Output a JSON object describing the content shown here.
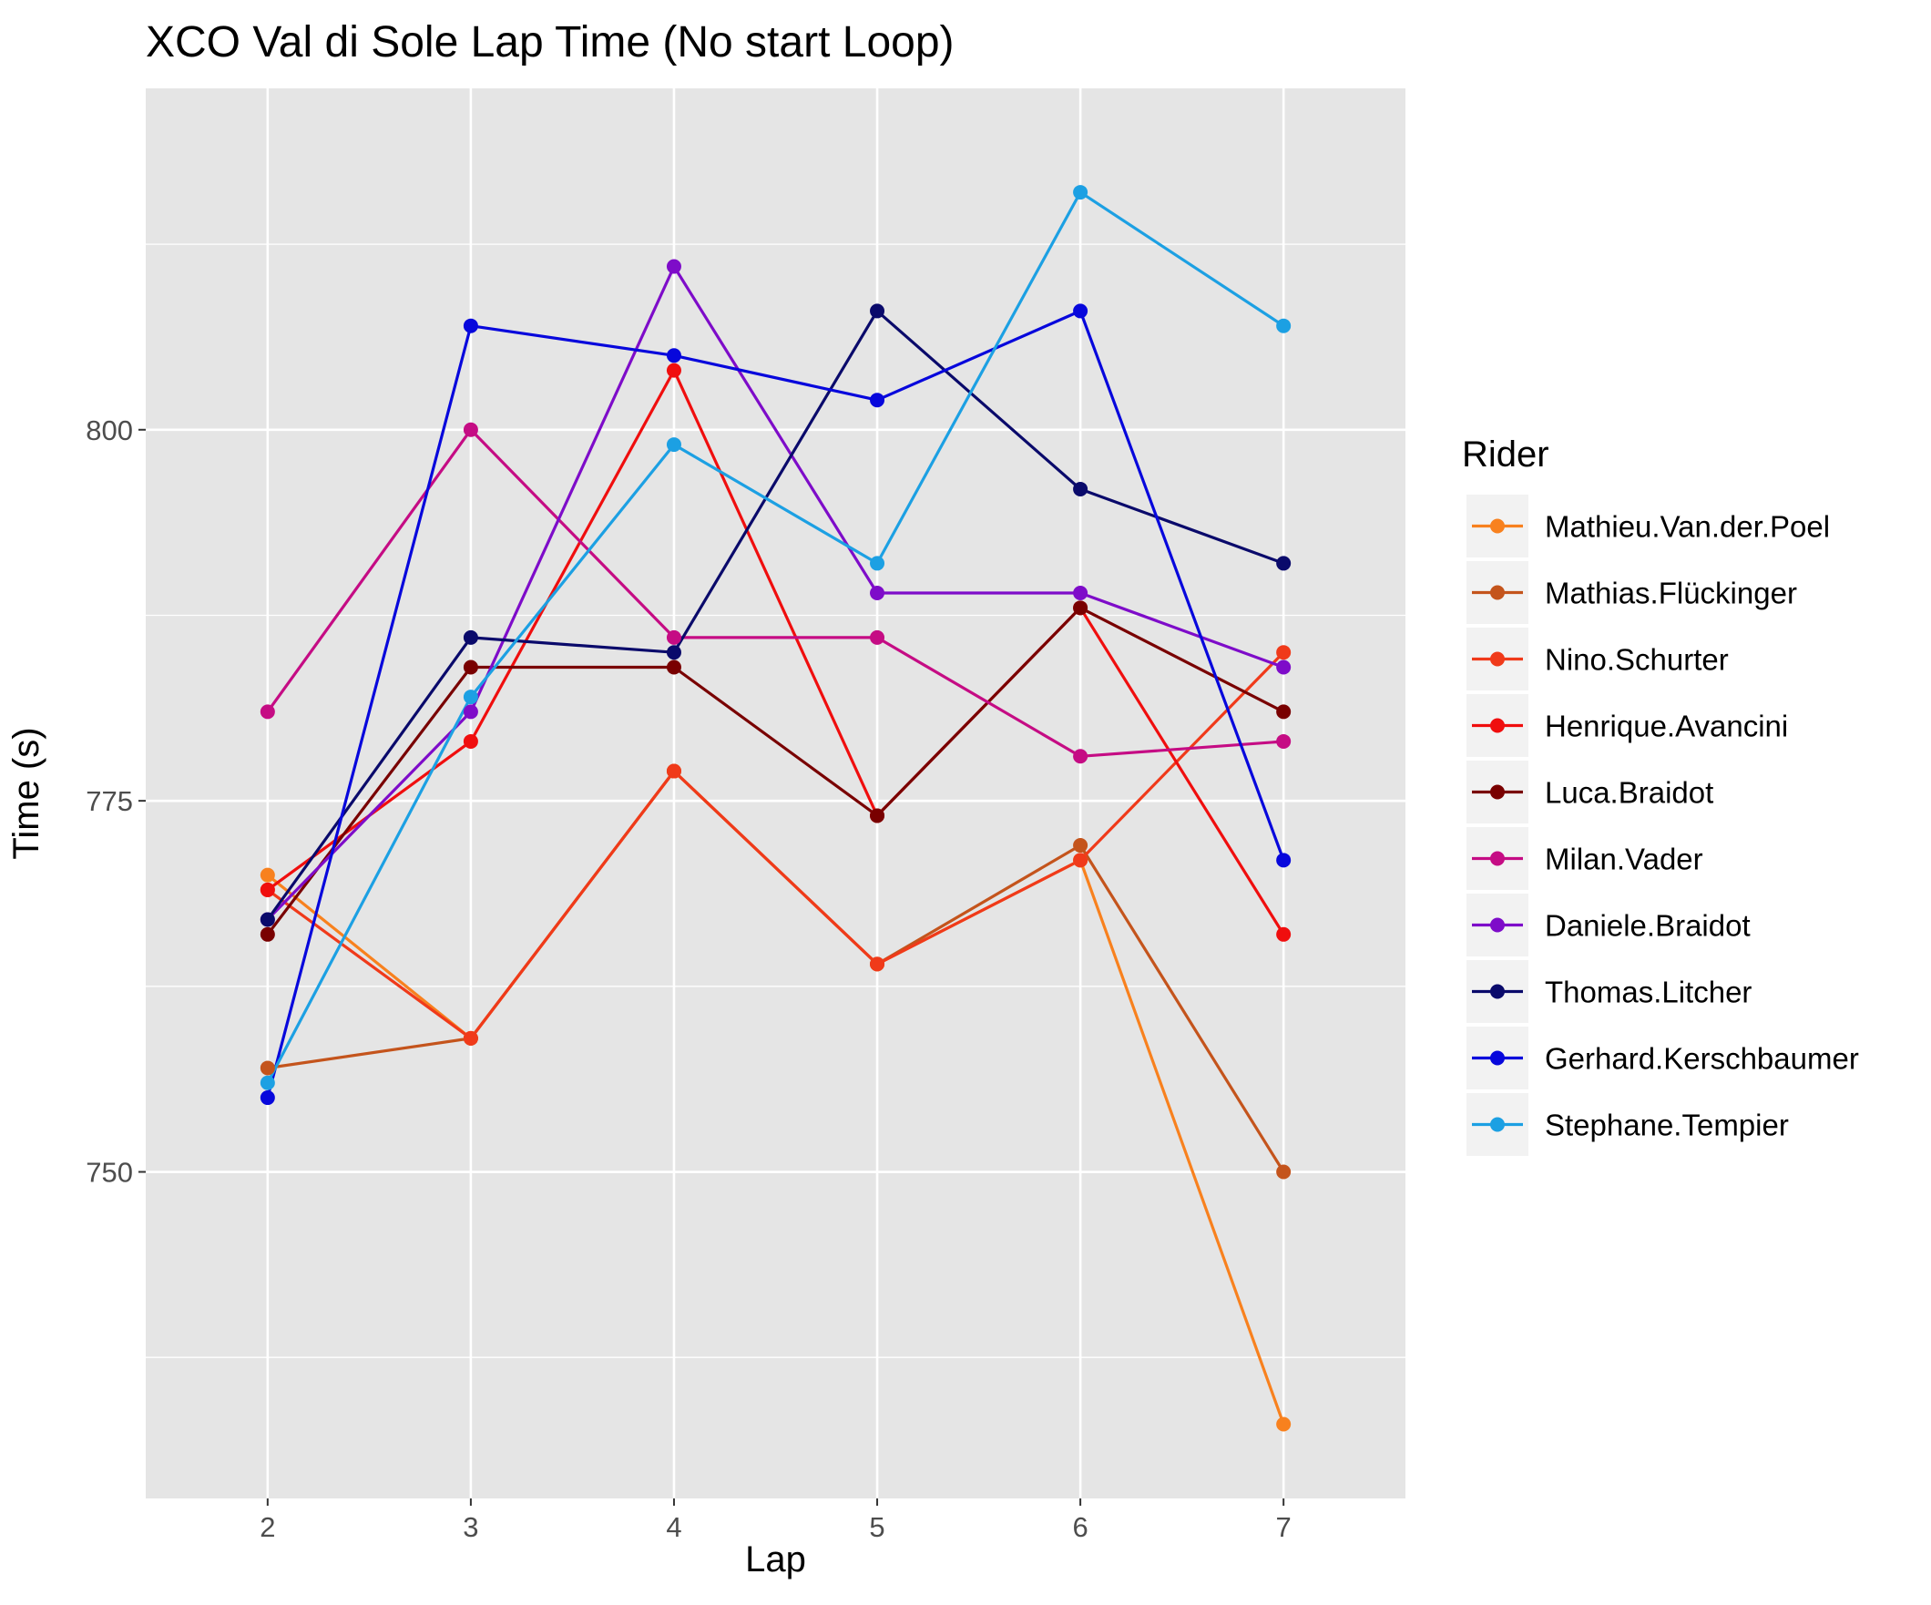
{
  "chart_data": {
    "type": "line",
    "title": "XCO Val di Sole Lap Time (No start Loop)",
    "xlabel": "Lap",
    "ylabel": "Time (s)",
    "x": [
      2,
      3,
      4,
      5,
      6,
      7
    ],
    "xlim": [
      1.4,
      7.6
    ],
    "ylim": [
      728,
      823
    ],
    "y_ticks": [
      750,
      775,
      800
    ],
    "grid": true,
    "legend_title": "Rider",
    "legend_position": "right",
    "series": [
      {
        "name": "Mathieu.Van.der.Poel",
        "color": "#F8811E",
        "values": [
          770,
          759,
          777,
          764,
          771,
          733
        ]
      },
      {
        "name": "Mathias.Flückinger",
        "color": "#C4541C",
        "values": [
          757,
          759,
          777,
          764,
          772,
          750
        ]
      },
      {
        "name": "Nino.Schurter",
        "color": "#F03A1A",
        "values": [
          769,
          759,
          777,
          764,
          771,
          785
        ]
      },
      {
        "name": "Henrique.Avancini",
        "color": "#F00E0E",
        "values": [
          769,
          779,
          804,
          774,
          788,
          766
        ]
      },
      {
        "name": "Luca.Braidot",
        "color": "#790000",
        "values": [
          766,
          784,
          784,
          774,
          788,
          781
        ]
      },
      {
        "name": "Milan.Vader",
        "color": "#C50C84",
        "values": [
          781,
          800,
          786,
          786,
          778,
          779
        ]
      },
      {
        "name": "Daniele.Braidot",
        "color": "#7E0CC9",
        "values": [
          767,
          781,
          811,
          789,
          789,
          784
        ]
      },
      {
        "name": "Thomas.Litcher",
        "color": "#0A0A6B",
        "values": [
          767,
          786,
          785,
          808,
          796,
          791
        ]
      },
      {
        "name": "Gerhard.Kerschbaumer",
        "color": "#0707DC",
        "values": [
          755,
          807,
          805,
          802,
          808,
          771
        ]
      },
      {
        "name": "Stephane.Tempier",
        "color": "#1CA0E3",
        "values": [
          756,
          782,
          799,
          791,
          816,
          807
        ]
      }
    ]
  }
}
